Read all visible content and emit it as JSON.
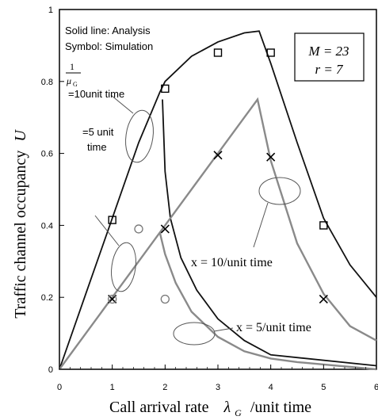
{
  "chart_data": {
    "type": "line",
    "xlabel": "Call arrival rate",
    "xlabel_symbol": "λ",
    "xlabel_subscript": "G",
    "xlabel_unit": "/unit time",
    "ylabel": "Traffic channel occupancy",
    "ylabel_symbol": "U",
    "xlim": [
      0,
      6
    ],
    "ylim": [
      0,
      1
    ],
    "x_ticks": [
      0,
      1,
      2,
      3,
      4,
      5,
      6
    ],
    "y_ticks": [
      0,
      0.2,
      0.4,
      0.6,
      0.8,
      1
    ],
    "x_tick_labels": [
      "0",
      "1",
      "2",
      "3",
      "4",
      "5",
      "6"
    ],
    "y_tick_labels": [
      "0",
      "0.2",
      "0.4",
      "0.6",
      "0.8",
      "1"
    ],
    "grid": false,
    "legend_notes": [
      "Solid line: Analysis",
      "Symbol: Simulation"
    ],
    "params": {
      "line1": "M = 23",
      "line2": "r = 7"
    },
    "mu_label": {
      "numerator": "1",
      "denominator": "μ",
      "denominator_sub": "G"
    },
    "annotations": {
      "ten_unit": "=10unit time",
      "five_unit_1": "=5 unit",
      "five_unit_2": "time",
      "x10": "x = 10/unit time",
      "x5": "x = 5/unit time"
    },
    "series": [
      {
        "color": "#111111",
        "style": "solid",
        "x": [
          0,
          0.5,
          1.0,
          1.5,
          1.9,
          2.0,
          2.5,
          3.0,
          3.5,
          3.78,
          4.0,
          4.5,
          5.0,
          5.5,
          6.0
        ],
        "y": [
          0,
          0.21,
          0.42,
          0.63,
          0.77,
          0.8,
          0.87,
          0.91,
          0.935,
          0.94,
          0.85,
          0.63,
          0.42,
          0.29,
          0.2
        ]
      },
      {
        "color": "#111111",
        "style": "solid",
        "x": [
          1.95,
          2.0,
          2.1,
          2.3,
          2.6,
          3.0,
          3.5,
          4.0,
          6.0
        ],
        "y": [
          0.75,
          0.55,
          0.42,
          0.31,
          0.22,
          0.14,
          0.08,
          0.04,
          0.01
        ]
      },
      {
        "color": "#8a8a8a",
        "style": "solid",
        "x": [
          0,
          1.0,
          2.0,
          3.0,
          3.5,
          3.75,
          4.0,
          4.5,
          5.0,
          5.5,
          6.0
        ],
        "y": [
          0,
          0.2,
          0.4,
          0.6,
          0.7,
          0.75,
          0.58,
          0.35,
          0.21,
          0.12,
          0.08
        ]
      },
      {
        "color": "#8a8a8a",
        "style": "solid",
        "x": [
          1.9,
          2.0,
          2.2,
          2.5,
          3.0,
          3.5,
          4.0,
          4.5,
          6.0
        ],
        "y": [
          0.38,
          0.32,
          0.24,
          0.16,
          0.09,
          0.05,
          0.03,
          0.02,
          0.0
        ]
      }
    ],
    "markers": {
      "squares": [
        [
          1,
          0.415
        ],
        [
          2,
          0.78
        ],
        [
          3,
          0.88
        ],
        [
          4,
          0.88
        ],
        [
          5,
          0.4
        ]
      ],
      "crosses": [
        [
          1,
          0.195
        ],
        [
          2,
          0.39
        ],
        [
          3,
          0.595
        ],
        [
          4,
          0.59
        ],
        [
          5,
          0.195
        ]
      ],
      "circles": [
        [
          1,
          0.195
        ],
        [
          1.5,
          0.39
        ],
        [
          2,
          0.195
        ]
      ]
    }
  }
}
